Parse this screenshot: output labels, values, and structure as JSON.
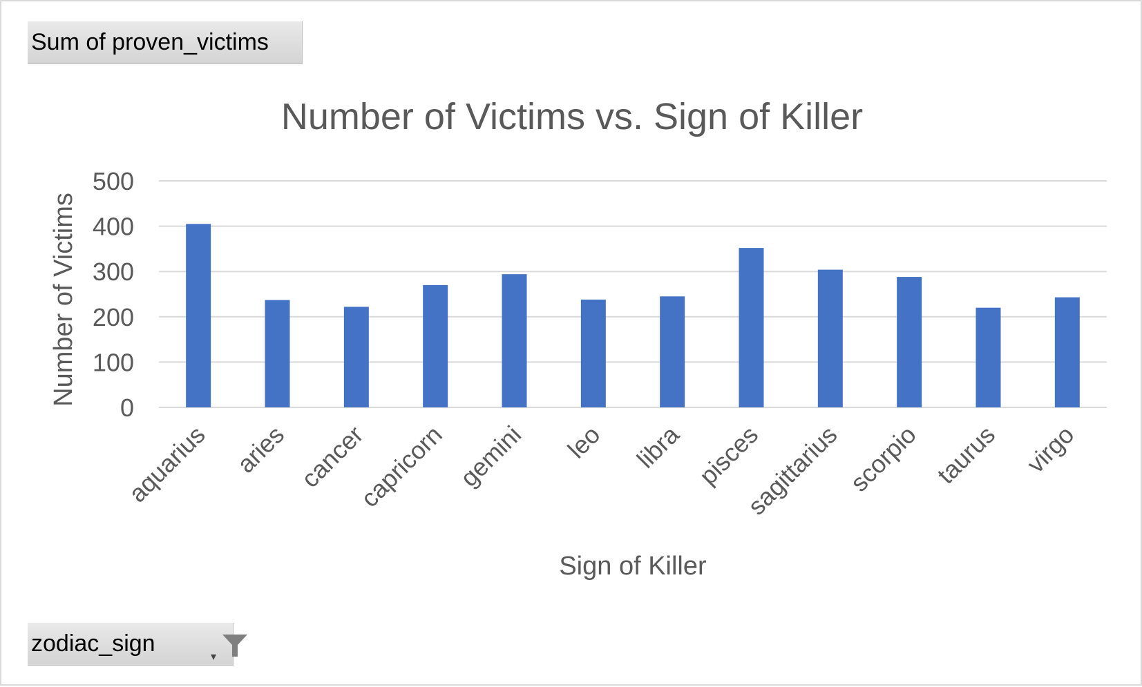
{
  "pivot": {
    "values_field_label": "Sum of proven_victims",
    "axis_field_label": "zodiac_sign"
  },
  "icons": {
    "filter": "filter-funnel-icon",
    "dropdown": "dropdown-arrow-icon"
  },
  "colors": {
    "bar": "#4472c4",
    "gridline": "#d9d9d9",
    "text": "#595959"
  },
  "chart_data": {
    "type": "bar",
    "title": "Number of Victims vs. Sign of Killer",
    "xlabel": "Sign of Killer",
    "ylabel": "Number of Victims",
    "categories": [
      "aquarius",
      "aries",
      "cancer",
      "capricorn",
      "gemini",
      "leo",
      "libra",
      "pisces",
      "sagittarius",
      "scorpio",
      "taurus",
      "virgo"
    ],
    "series": [
      {
        "values": [
          405,
          237,
          222,
          270,
          294,
          238,
          245,
          352,
          304,
          288,
          220,
          243
        ]
      }
    ],
    "ylim": [
      0,
      500
    ],
    "yticks": [
      0,
      100,
      200,
      300,
      400,
      500
    ],
    "grid": true,
    "legend": "none"
  }
}
